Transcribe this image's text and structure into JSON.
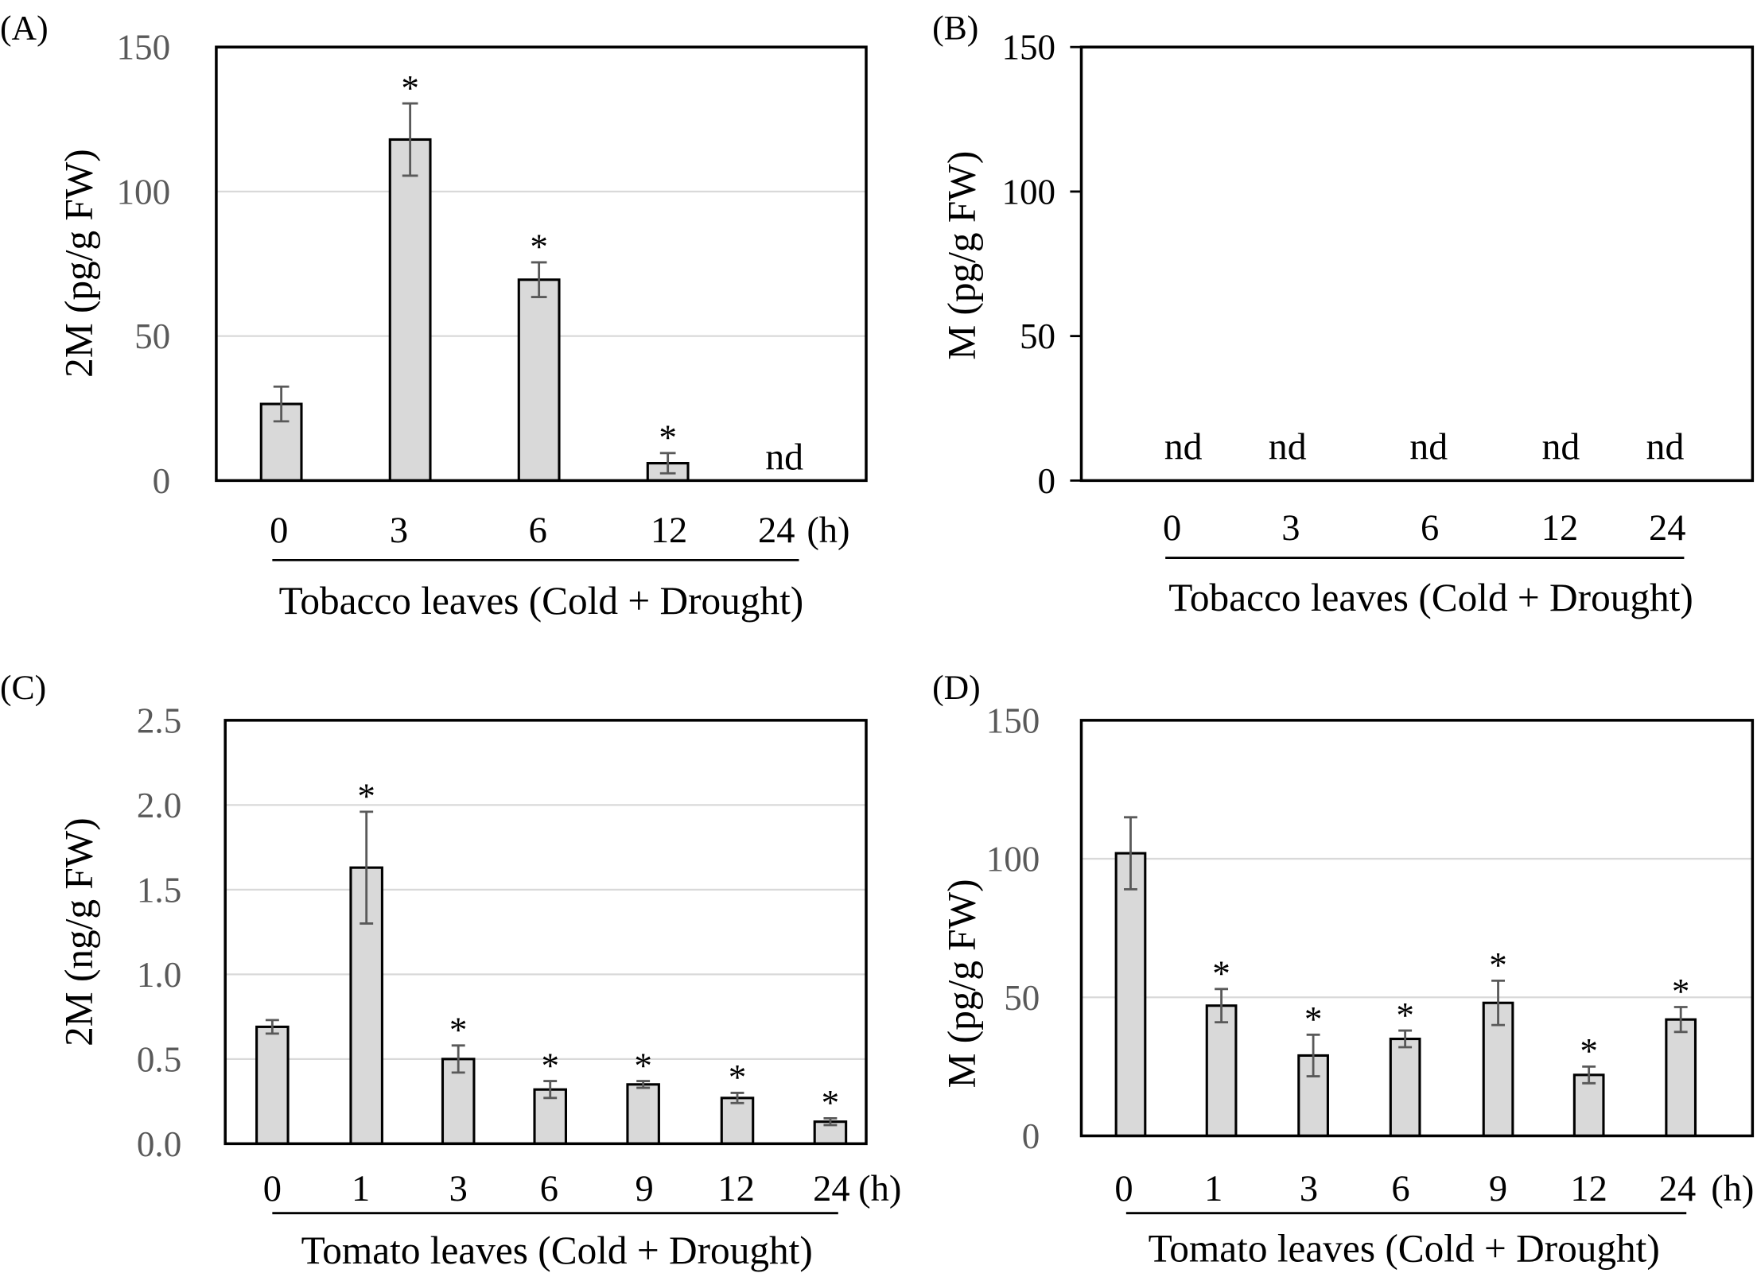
{
  "style": {
    "bar_fill": "#d9d9d9",
    "bar_stroke": "#000000",
    "error_bar_color": "#595959",
    "grid_color": "#d9d9d9",
    "frame_color": "#000000",
    "text_color": "#000000"
  },
  "chart_data": [
    {
      "panel_label": "(A)",
      "type": "bar",
      "categories": [
        "0",
        "3",
        "6",
        "12",
        "24"
      ],
      "x_unit": "(h)",
      "xlabel": "Tobacco leaves (Cold + Drought)",
      "ylabel": "2M (pg/g FW)",
      "ylim": [
        0,
        150
      ],
      "yticks": [
        "0",
        "50",
        "100",
        "150"
      ],
      "grid": true,
      "y_tick_marks": false,
      "tick_label_color": "#595959",
      "values": [
        26.5,
        118,
        69.5,
        6,
        null
      ],
      "errors": [
        6,
        12.5,
        6,
        3.5,
        null
      ],
      "annotations": [
        "",
        "*",
        "*",
        "*",
        "nd"
      ]
    },
    {
      "panel_label": "(B)",
      "type": "bar",
      "categories": [
        "0",
        "3",
        "6",
        "12",
        "24"
      ],
      "x_unit": "",
      "xlabel": "Tobacco leaves (Cold + Drought)",
      "ylabel": "M (pg/g FW)",
      "ylim": [
        0,
        150
      ],
      "yticks": [
        "0",
        "50",
        "100",
        "150"
      ],
      "grid": false,
      "y_tick_marks": true,
      "tick_label_color": "#000000",
      "values": [
        null,
        null,
        null,
        null,
        null
      ],
      "errors": [
        null,
        null,
        null,
        null,
        null
      ],
      "annotations": [
        "nd",
        "nd",
        "nd",
        "nd",
        "nd"
      ]
    },
    {
      "panel_label": "(C)",
      "type": "bar",
      "categories": [
        "0",
        "1",
        "3",
        "6",
        "9",
        "12",
        "24"
      ],
      "x_unit": "(h)",
      "xlabel": "Tomato leaves (Cold + Drought)",
      "ylabel": "2M (ng/g FW)",
      "ylim": [
        0,
        2.5
      ],
      "yticks": [
        "0.0",
        "0.5",
        "1.0",
        "1.5",
        "2.0",
        "2.5"
      ],
      "grid": true,
      "y_tick_marks": false,
      "tick_label_color": "#595959",
      "values": [
        0.69,
        1.63,
        0.5,
        0.32,
        0.35,
        0.27,
        0.13
      ],
      "errors": [
        0.04,
        0.33,
        0.08,
        0.05,
        0.02,
        0.03,
        0.02
      ],
      "annotations": [
        "",
        "*",
        "*",
        "*",
        "*",
        "*",
        "*"
      ]
    },
    {
      "panel_label": "(D)",
      "type": "bar",
      "categories": [
        "0",
        "1",
        "3",
        "6",
        "9",
        "12",
        "24"
      ],
      "x_unit": "(h)",
      "xlabel": "Tomato leaves (Cold + Drought)",
      "ylabel": "M (pg/g FW)",
      "ylim": [
        0,
        150
      ],
      "yticks": [
        "0",
        "50",
        "100",
        "150"
      ],
      "grid": true,
      "y_tick_marks": false,
      "tick_label_color": "#595959",
      "values": [
        102,
        47,
        29,
        35,
        48,
        22,
        42
      ],
      "errors": [
        13,
        6,
        7.5,
        3,
        8,
        3,
        4.5
      ],
      "annotations": [
        "",
        "*",
        "*",
        "*",
        "*",
        "*",
        "*"
      ]
    }
  ]
}
